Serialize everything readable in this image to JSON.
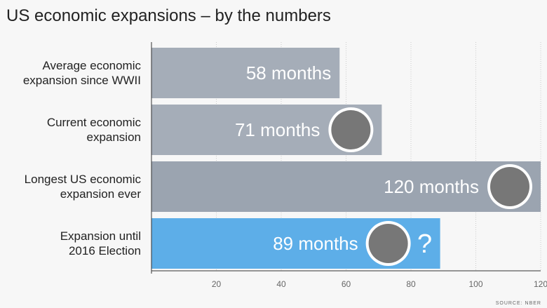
{
  "chart_data": {
    "type": "hbar",
    "title": "US economic expansions – by the numbers",
    "categories": [
      "Average economic\nexpansion since WWII",
      "Current economic\nexpansion",
      "Longest US economic\nexpansion ever",
      "Expansion until\n2016 Election"
    ],
    "values": [
      58,
      71,
      120,
      89
    ],
    "value_labels": [
      "58 months",
      "71 months",
      "120 months",
      "89 months"
    ],
    "colors": [
      "#a5adb8",
      "#a5adb8",
      "#9ba4b0",
      "#5daee8"
    ],
    "xlim": [
      0,
      120
    ],
    "xticks": [
      20,
      40,
      60,
      80,
      100,
      120
    ],
    "grid": true,
    "annotation": "?",
    "source": "SOURCE: NBER"
  }
}
